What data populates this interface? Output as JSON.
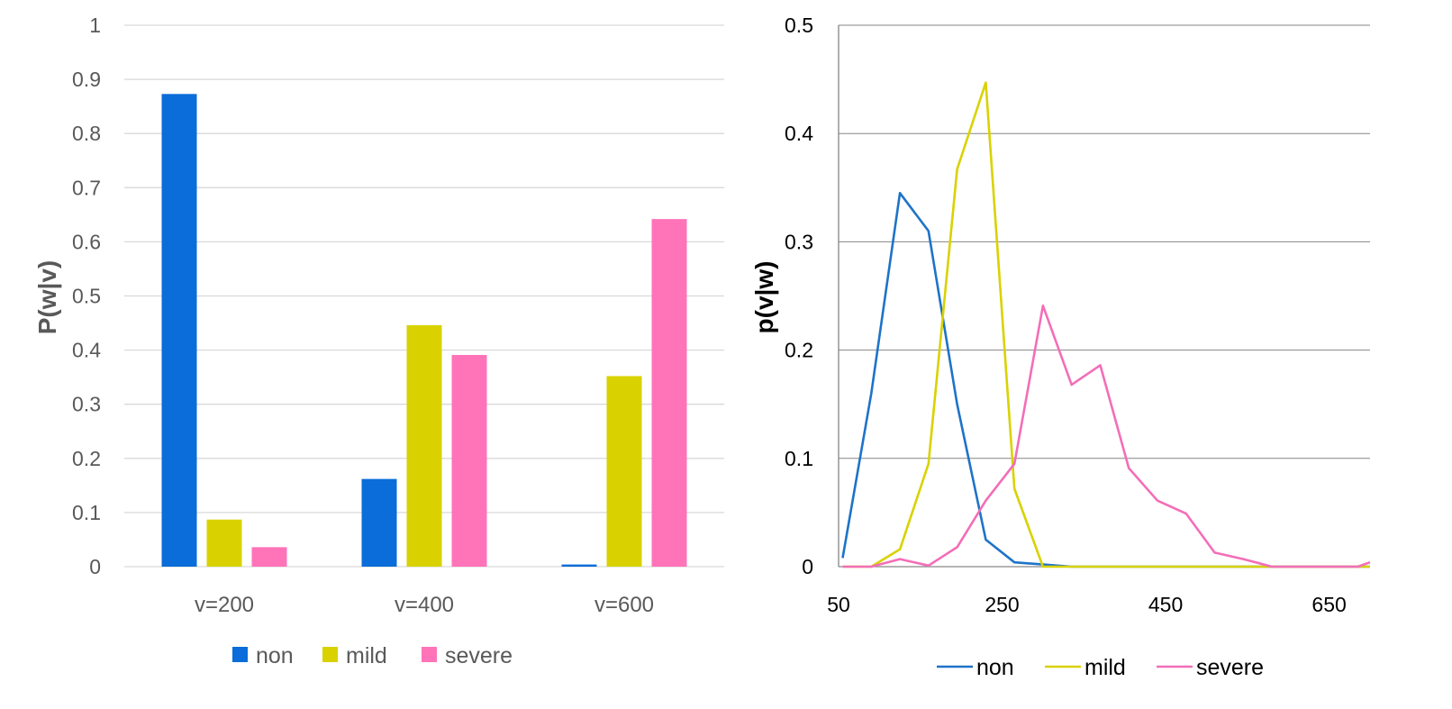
{
  "chart_data": [
    {
      "type": "bar",
      "ylabel": "P(w|v)",
      "ylim": [
        0,
        1
      ],
      "yticks": [
        0,
        0.1,
        0.2,
        0.3,
        0.4,
        0.5,
        0.6,
        0.7,
        0.8,
        0.9,
        1
      ],
      "grid": true,
      "legend_position": "bottom",
      "categories": [
        "v=200",
        "v=400",
        "v=600"
      ],
      "series": [
        {
          "name": "non",
          "color": "#0A6DD9",
          "values": [
            0.873,
            0.162,
            0.004
          ]
        },
        {
          "name": "mild",
          "color": "#D9D200",
          "values": [
            0.087,
            0.446,
            0.352
          ]
        },
        {
          "name": "severe",
          "color": "#FF73B9",
          "values": [
            0.036,
            0.391,
            0.642
          ]
        }
      ]
    },
    {
      "type": "line",
      "ylabel": "p(v|w)",
      "xlim": [
        50,
        700
      ],
      "ylim": [
        0,
        0.5
      ],
      "xticks": [
        50,
        250,
        450,
        650
      ],
      "yticks": [
        0,
        0.1,
        0.2,
        0.3,
        0.4,
        0.5
      ],
      "grid": true,
      "legend_position": "bottom",
      "x": [
        55,
        90,
        125,
        160,
        195,
        230,
        265,
        300,
        335,
        370,
        405,
        440,
        475,
        510,
        545,
        580,
        615,
        650,
        685,
        700
      ],
      "series": [
        {
          "name": "non",
          "color": "#1E73C8",
          "values": [
            0.008,
            0.16,
            0.345,
            0.31,
            0.15,
            0.025,
            0.004,
            0.002,
            0,
            0,
            0,
            0,
            0,
            0,
            0,
            0,
            0,
            0,
            0,
            0
          ]
        },
        {
          "name": "mild",
          "color": "#D9D200",
          "values": [
            0,
            0,
            0.016,
            0.095,
            0.367,
            0.447,
            0.072,
            0,
            0,
            0,
            0,
            0,
            0,
            0,
            0,
            0,
            0,
            0,
            0,
            0
          ]
        },
        {
          "name": "severe",
          "color": "#F36EB8",
          "values": [
            0,
            0,
            0.007,
            0.001,
            0.018,
            0.061,
            0.095,
            0.241,
            0.168,
            0.186,
            0.091,
            0.061,
            0.049,
            0.013,
            0.007,
            0,
            0,
            0,
            0,
            0.004
          ]
        }
      ]
    }
  ]
}
